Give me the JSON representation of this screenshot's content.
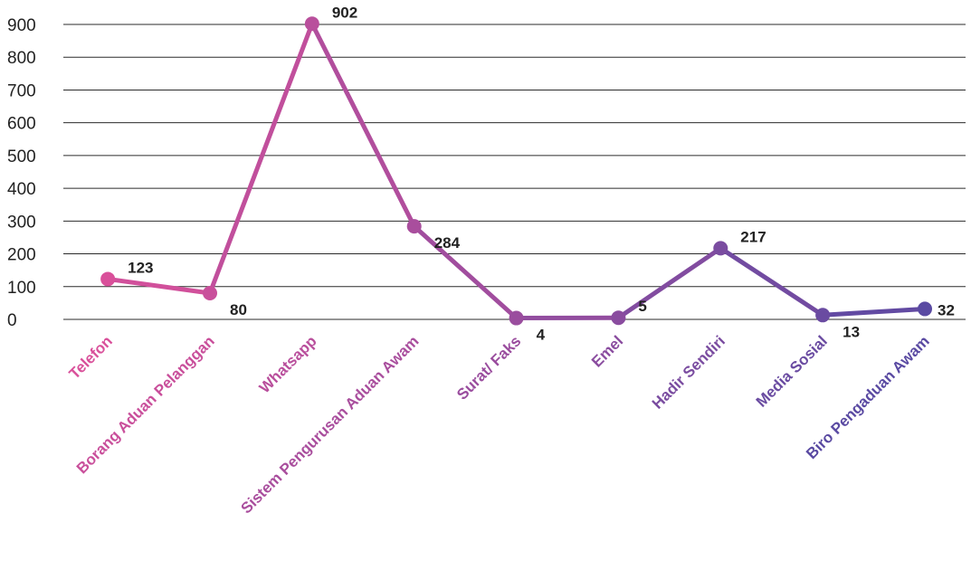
{
  "chart_data": {
    "type": "line",
    "title": "",
    "xlabel": "",
    "ylabel": "",
    "ylim": [
      0,
      900
    ],
    "yticks": [
      0,
      100,
      200,
      300,
      400,
      500,
      600,
      700,
      800,
      900
    ],
    "grid": true,
    "legend": "none",
    "categories": [
      "Telefon",
      "Borang Aduan Pelanggan",
      "Whatsapp",
      "Sistem Pengurusan Aduan Awam",
      "Surat/ Faks",
      "Emel",
      "Hadir Sendiri",
      "Media Sosial",
      "Biro Pengaduan Awam"
    ],
    "series": [
      {
        "values": [
          123,
          80,
          902,
          284,
          4,
          5,
          217,
          13,
          32
        ],
        "data_labels": [
          "123",
          "80",
          "902",
          "284",
          "4",
          "5",
          "217",
          "13",
          "32"
        ]
      }
    ],
    "colors": {
      "gradient_start": "#d9509a",
      "gradient_end": "#5a4aa2",
      "grid": "#2b2b2b",
      "text": "#222222"
    }
  }
}
